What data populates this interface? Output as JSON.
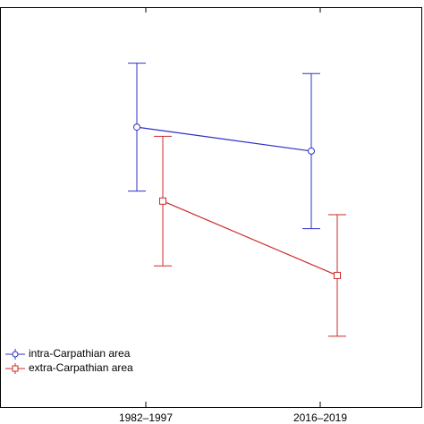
{
  "chart_data": {
    "type": "errorbar-line",
    "categories": [
      "1982–1997",
      "2016–2019"
    ],
    "series": [
      {
        "name": "intra-Carpathian area",
        "color": "#3030c8",
        "marker": "circle",
        "values": [
          70,
          64
        ],
        "errors": [
          16,
          19.4
        ]
      },
      {
        "name": "extra-Carpathian area",
        "color": "#cc2a2a",
        "marker": "square",
        "values": [
          51.5,
          32.9
        ],
        "errors": [
          16.2,
          15.2
        ]
      }
    ],
    "ylim": [
      0,
      100
    ],
    "legend": "lower left"
  }
}
